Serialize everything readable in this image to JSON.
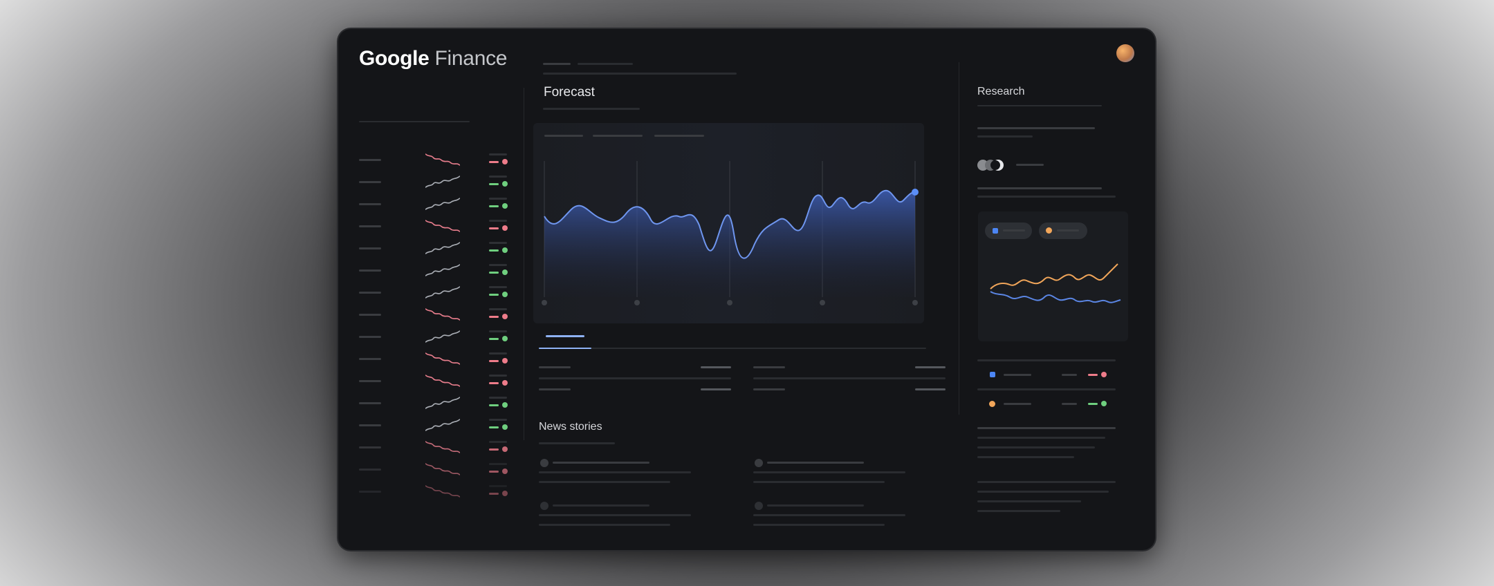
{
  "app": {
    "brand_primary": "Google",
    "brand_secondary": "Finance"
  },
  "main": {
    "forecast_title": "Forecast",
    "news_title": "News stories"
  },
  "research": {
    "title": "Research",
    "legend_series": [
      {
        "color": "#4c86f5"
      },
      {
        "color": "#f2a65a"
      }
    ]
  },
  "watchlist": {
    "row_trends": [
      "down",
      "up",
      "up",
      "down",
      "up",
      "up",
      "up",
      "down",
      "up",
      "down",
      "down",
      "up",
      "up",
      "down",
      "down",
      "down"
    ]
  },
  "colors": {
    "accent_blue": "#4c86f5",
    "accent_orange": "#f2a65a",
    "positive": "#6fcf7f",
    "negative": "#ee7c8a",
    "background": "#141518"
  },
  "icons": {
    "avatar": "user-avatar",
    "research_logos": "overlapping-circles-icon"
  }
}
